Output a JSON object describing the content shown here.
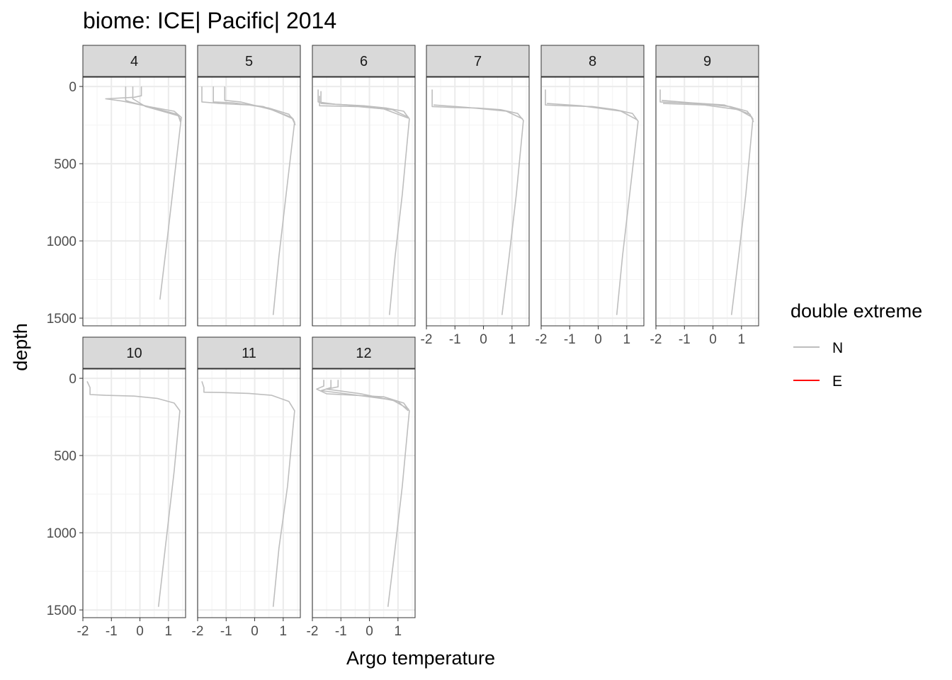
{
  "chart_data": {
    "type": "line",
    "title": "biome: ICE| Pacific| 2014",
    "xlabel": "Argo temperature",
    "ylabel": "depth",
    "xlim": [
      -2,
      1.6
    ],
    "ylim": [
      1550,
      -60
    ],
    "y_reversed": true,
    "x_ticks": [
      -2,
      -1,
      0,
      1
    ],
    "x_tick_labels": [
      "-2",
      "-1",
      "0",
      "1"
    ],
    "y_ticks": [
      0,
      500,
      1000,
      1500
    ],
    "y_tick_labels": [
      "0",
      "500",
      "1000",
      "1500"
    ],
    "grid": true,
    "legend": {
      "title": "double extreme",
      "position": "right",
      "entries": [
        {
          "label": "N",
          "color": "#bebebe"
        },
        {
          "label": "E",
          "color": "#ff0000"
        }
      ]
    },
    "colors": {
      "N": "#bebebe",
      "E": "#ff0000",
      "strip_fill": "#d9d9d9",
      "grid": "#ebebeb"
    },
    "panels": [
      {
        "label": "4",
        "series": [
          {
            "group": "N",
            "points": [
              [
                0.05,
                0
              ],
              [
                0.05,
                60
              ],
              [
                -0.2,
                70
              ],
              [
                -1.2,
                80
              ],
              [
                -0.6,
                95
              ],
              [
                0.3,
                130
              ],
              [
                1.2,
                160
              ],
              [
                1.45,
                200
              ],
              [
                1.2,
                600
              ],
              [
                0.95,
                1000
              ],
              [
                0.7,
                1380
              ]
            ]
          },
          {
            "group": "N",
            "points": [
              [
                -0.5,
                0
              ],
              [
                -0.5,
                90
              ],
              [
                -0.35,
                100
              ],
              [
                0.5,
                140
              ],
              [
                1.3,
                180
              ],
              [
                1.45,
                220
              ]
            ]
          },
          {
            "group": "N",
            "points": [
              [
                -0.25,
                0
              ],
              [
                -0.25,
                80
              ],
              [
                0.2,
                130
              ],
              [
                1.35,
                190
              ],
              [
                1.42,
                230
              ]
            ]
          }
        ]
      },
      {
        "label": "5",
        "series": [
          {
            "group": "N",
            "points": [
              [
                -1.85,
                0
              ],
              [
                -1.85,
                100
              ],
              [
                -1.2,
                110
              ],
              [
                -0.2,
                120
              ],
              [
                0.5,
                140
              ],
              [
                1.2,
                180
              ],
              [
                1.4,
                230
              ],
              [
                1.1,
                700
              ],
              [
                0.85,
                1100
              ],
              [
                0.65,
                1480
              ]
            ]
          },
          {
            "group": "N",
            "points": [
              [
                -1.45,
                0
              ],
              [
                -1.45,
                100
              ],
              [
                -0.8,
                105
              ],
              [
                0.3,
                130
              ],
              [
                1.3,
                200
              ],
              [
                1.4,
                240
              ]
            ]
          },
          {
            "group": "N",
            "points": [
              [
                -1.05,
                0
              ],
              [
                -1.05,
                90
              ],
              [
                -0.5,
                100
              ],
              [
                0.6,
                150
              ],
              [
                1.35,
                210
              ],
              [
                1.42,
                250
              ]
            ]
          }
        ]
      },
      {
        "label": "6",
        "series": [
          {
            "group": "N",
            "points": [
              [
                -1.8,
                20
              ],
              [
                -1.8,
                100
              ],
              [
                -1.2,
                115
              ],
              [
                -0.2,
                125
              ],
              [
                0.6,
                140
              ],
              [
                1.2,
                160
              ],
              [
                1.4,
                210
              ],
              [
                1.15,
                700
              ],
              [
                0.9,
                1100
              ],
              [
                0.7,
                1480
              ]
            ]
          },
          {
            "group": "N",
            "points": [
              [
                -1.75,
                60
              ],
              [
                -1.75,
                125
              ],
              [
                -0.4,
                130
              ],
              [
                0.8,
                150
              ],
              [
                1.38,
                200
              ]
            ]
          },
          {
            "group": "N",
            "points": [
              [
                -1.7,
                30
              ],
              [
                -1.7,
                110
              ],
              [
                -0.8,
                120
              ],
              [
                0.5,
                145
              ],
              [
                1.36,
                205
              ]
            ]
          }
        ]
      },
      {
        "label": "7",
        "series": [
          {
            "group": "N",
            "points": [
              [
                -1.8,
                20
              ],
              [
                -1.8,
                130
              ],
              [
                -1.2,
                135
              ],
              [
                -0.2,
                140
              ],
              [
                0.6,
                150
              ],
              [
                1.2,
                175
              ],
              [
                1.4,
                220
              ],
              [
                1.15,
                700
              ],
              [
                0.9,
                1100
              ],
              [
                0.65,
                1480
              ]
            ]
          },
          {
            "group": "N",
            "points": [
              [
                -1.75,
                120
              ],
              [
                -0.6,
                135
              ],
              [
                0.8,
                160
              ],
              [
                1.38,
                210
              ]
            ]
          }
        ]
      },
      {
        "label": "8",
        "series": [
          {
            "group": "N",
            "points": [
              [
                -1.85,
                20
              ],
              [
                -1.85,
                120
              ],
              [
                -1.2,
                125
              ],
              [
                -0.2,
                130
              ],
              [
                0.6,
                150
              ],
              [
                1.2,
                175
              ],
              [
                1.4,
                225
              ],
              [
                1.1,
                700
              ],
              [
                0.85,
                1100
              ],
              [
                0.65,
                1480
              ]
            ]
          },
          {
            "group": "N",
            "points": [
              [
                -1.8,
                110
              ],
              [
                -0.6,
                125
              ],
              [
                0.8,
                160
              ],
              [
                1.36,
                215
              ]
            ]
          }
        ]
      },
      {
        "label": "9",
        "series": [
          {
            "group": "N",
            "points": [
              [
                -1.85,
                20
              ],
              [
                -1.85,
                100
              ],
              [
                -1.2,
                105
              ],
              [
                -0.2,
                115
              ],
              [
                0.6,
                130
              ],
              [
                1.2,
                160
              ],
              [
                1.4,
                210
              ],
              [
                1.15,
                700
              ],
              [
                0.9,
                1100
              ],
              [
                0.65,
                1480
              ]
            ]
          },
          {
            "group": "N",
            "points": [
              [
                -1.8,
                90
              ],
              [
                -0.8,
                105
              ],
              [
                0.4,
                120
              ],
              [
                1.3,
                180
              ],
              [
                1.42,
                230
              ]
            ]
          },
          {
            "group": "N",
            "points": [
              [
                -1.75,
                110
              ],
              [
                -0.3,
                120
              ],
              [
                0.9,
                150
              ],
              [
                1.38,
                200
              ]
            ]
          }
        ]
      },
      {
        "label": "10",
        "series": [
          {
            "group": "N",
            "points": [
              [
                -1.85,
                20
              ],
              [
                -1.75,
                60
              ],
              [
                -1.75,
                105
              ],
              [
                -1.2,
                110
              ],
              [
                -0.2,
                115
              ],
              [
                0.6,
                130
              ],
              [
                1.2,
                160
              ],
              [
                1.4,
                210
              ],
              [
                1.2,
                600
              ],
              [
                0.95,
                1000
              ],
              [
                0.65,
                1480
              ]
            ]
          }
        ]
      },
      {
        "label": "11",
        "series": [
          {
            "group": "N",
            "points": [
              [
                -1.85,
                20
              ],
              [
                -1.78,
                60
              ],
              [
                -1.78,
                90
              ],
              [
                -1.2,
                92
              ],
              [
                -0.2,
                98
              ],
              [
                0.6,
                110
              ],
              [
                1.2,
                150
              ],
              [
                1.4,
                210
              ],
              [
                1.15,
                700
              ],
              [
                0.85,
                1100
              ],
              [
                0.65,
                1480
              ]
            ]
          }
        ]
      },
      {
        "label": "12",
        "series": [
          {
            "group": "N",
            "points": [
              [
                -1.6,
                10
              ],
              [
                -1.6,
                50
              ],
              [
                -1.85,
                70
              ],
              [
                -1.5,
                100
              ],
              [
                -0.5,
                110
              ],
              [
                0.5,
                120
              ],
              [
                1.2,
                160
              ],
              [
                1.4,
                210
              ],
              [
                1.15,
                700
              ],
              [
                0.9,
                1100
              ],
              [
                0.65,
                1480
              ]
            ]
          },
          {
            "group": "N",
            "points": [
              [
                -1.35,
                10
              ],
              [
                -1.35,
                60
              ],
              [
                -1.7,
                80
              ],
              [
                -0.6,
                105
              ],
              [
                0.8,
                140
              ],
              [
                1.38,
                200
              ]
            ]
          },
          {
            "group": "N",
            "points": [
              [
                -1.1,
                10
              ],
              [
                -1.1,
                55
              ],
              [
                -1.5,
                70
              ],
              [
                -0.3,
                100
              ],
              [
                1.0,
                150
              ],
              [
                1.36,
                210
              ]
            ]
          }
        ]
      }
    ]
  }
}
